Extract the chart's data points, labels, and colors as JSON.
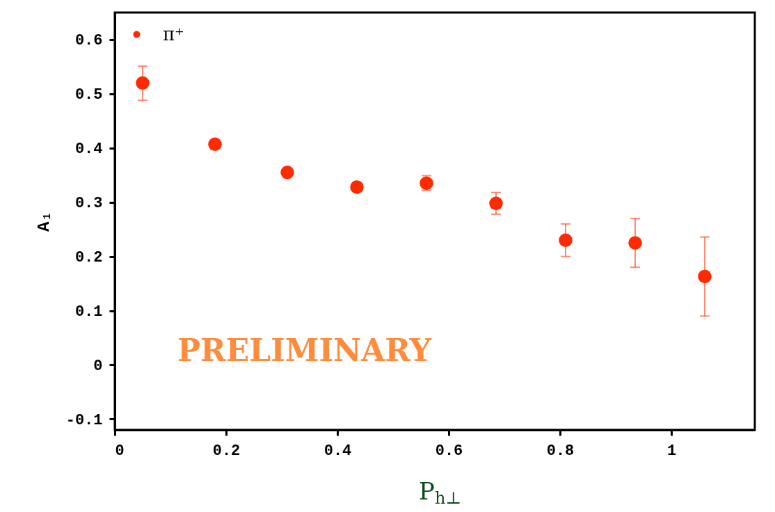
{
  "chart_data": {
    "type": "scatter",
    "xlabel": "P$_{h⊥}$",
    "ylabel": "A₁",
    "x": [
      0.05,
      0.18,
      0.31,
      0.435,
      0.56,
      0.685,
      0.81,
      0.935,
      1.06
    ],
    "series": [
      {
        "name": "π⁺",
        "color": "#ff2a00",
        "values": [
          0.52,
          0.407,
          0.355,
          0.328,
          0.335,
          0.298,
          0.23,
          0.225,
          0.163
        ],
        "errors": [
          [
            0.488,
            0.551
          ],
          null,
          null,
          null,
          [
            0.322,
            0.349
          ],
          [
            0.278,
            0.318
          ],
          [
            0.2,
            0.26
          ],
          [
            0.18,
            0.27
          ],
          [
            0.09,
            0.236
          ]
        ]
      }
    ],
    "xlim": [
      0,
      1.15
    ],
    "ylim": [
      -0.12,
      0.65
    ],
    "xticks": [
      0,
      0.2,
      0.4,
      0.6,
      0.8,
      1
    ],
    "yticks": [
      -0.1,
      0,
      0.1,
      0.2,
      0.3,
      0.4,
      0.5,
      0.6
    ],
    "annotations": [
      "PRELIMINARY"
    ],
    "marker": "circle",
    "legend": "top left",
    "grid": false
  }
}
